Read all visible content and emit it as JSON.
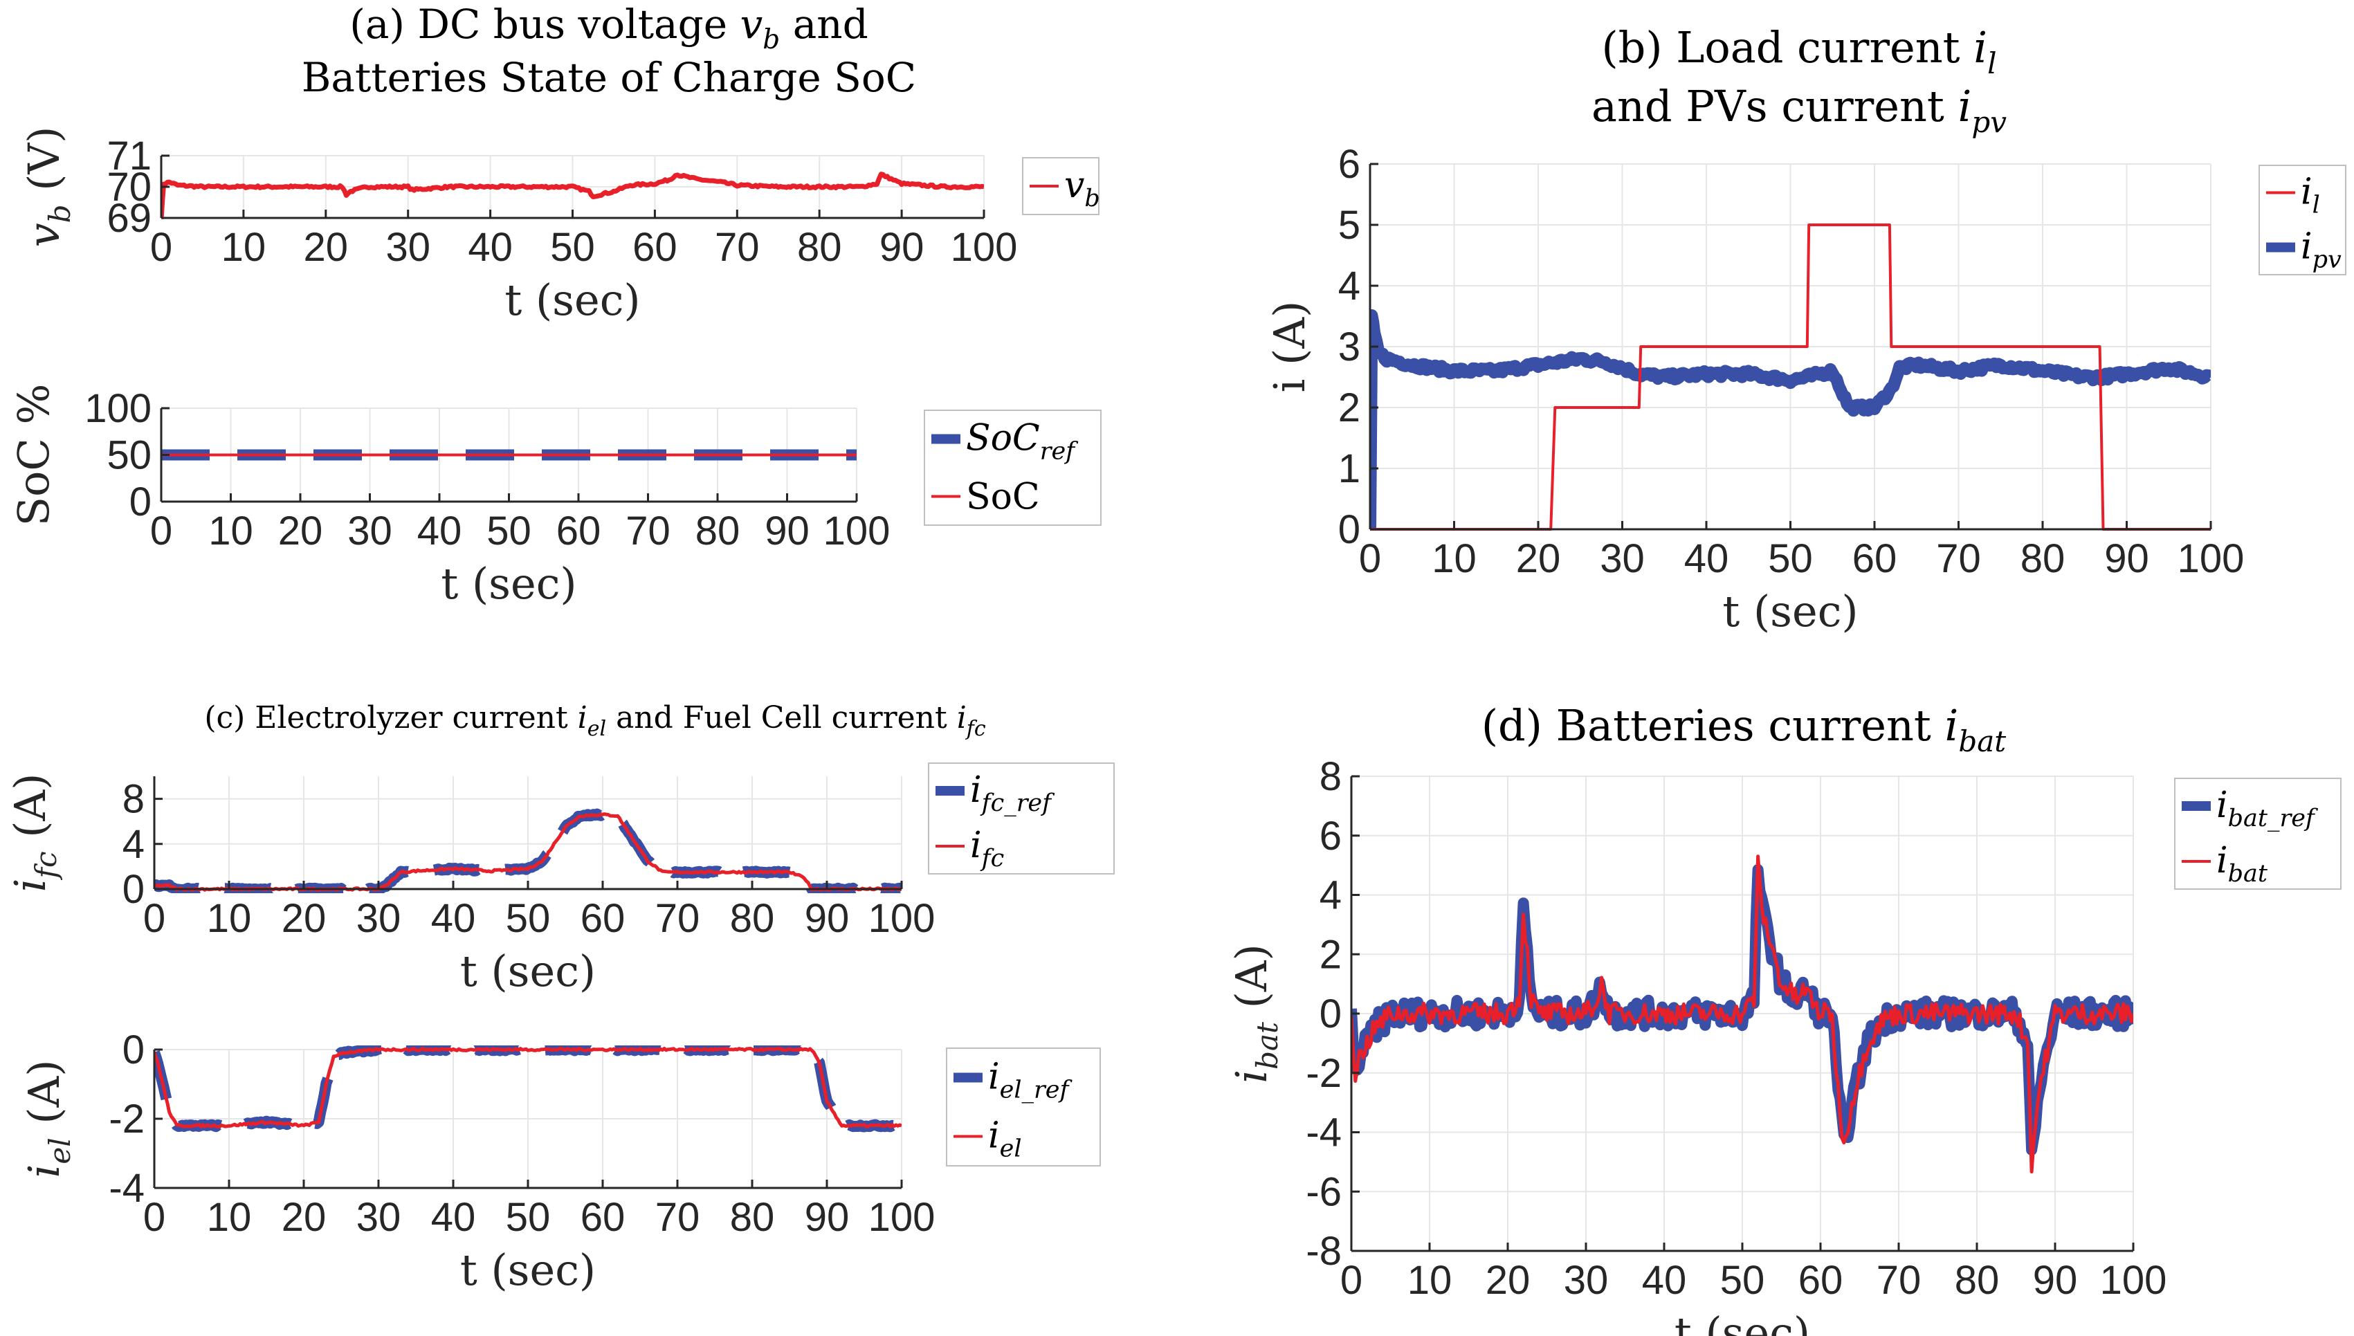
{
  "colors": {
    "red": "#e8202a",
    "blue": "#3a4fa6",
    "grid": "#e6e6e6",
    "axis": "#262626"
  },
  "chart_data": [
    {
      "id": "a1",
      "type": "line",
      "title_lines": [
        "(a) DC bus voltage v_b and",
        "Batteries State of Charge SoC"
      ],
      "xlabel": "t (sec)",
      "ylabel": "v_b (V)",
      "xlim": [
        0,
        100
      ],
      "ylim": [
        69,
        71
      ],
      "xticks": [
        0,
        10,
        20,
        30,
        40,
        50,
        60,
        70,
        80,
        90,
        100
      ],
      "yticks": [
        69,
        70,
        71
      ],
      "legend": [
        {
          "label": "v_b",
          "color": "red",
          "dash": false
        }
      ],
      "series": [
        {
          "name": "v_b",
          "color": "red",
          "width": 7,
          "noise": 0.035,
          "x": [
            0,
            0.3,
            1,
            2,
            5,
            10,
            15,
            20,
            22,
            22.5,
            23,
            25,
            28,
            30,
            30.5,
            35,
            40,
            45,
            50,
            52,
            52.5,
            55,
            57,
            60,
            62,
            62.5,
            65,
            68,
            70,
            75,
            80,
            85,
            87,
            87.5,
            90,
            95,
            100
          ],
          "y": [
            69,
            70.1,
            70.15,
            70.05,
            70,
            70,
            70,
            70,
            70,
            69.75,
            69.85,
            70,
            70,
            70,
            69.9,
            70,
            70,
            70,
            70,
            69.85,
            69.7,
            69.85,
            70.05,
            70.1,
            70.25,
            70.4,
            70.25,
            70.15,
            70.05,
            70,
            70,
            70,
            70.1,
            70.4,
            70.1,
            70,
            70
          ]
        }
      ]
    },
    {
      "id": "a2",
      "type": "line",
      "xlabel": "t (sec)",
      "ylabel": "SoC %",
      "xlim": [
        0,
        100
      ],
      "ylim": [
        0,
        100
      ],
      "xticks": [
        0,
        10,
        20,
        30,
        40,
        50,
        60,
        70,
        80,
        90,
        100
      ],
      "yticks": [
        0,
        50,
        100
      ],
      "legend": [
        {
          "label": "SoC_ref",
          "color": "blue",
          "dash": true
        },
        {
          "label": "SoC",
          "color": "red",
          "dash": false
        }
      ],
      "series": [
        {
          "name": "SoC_ref",
          "color": "blue",
          "width": 16,
          "dash": true,
          "x": [
            0,
            100
          ],
          "y": [
            50,
            50
          ]
        },
        {
          "name": "SoC",
          "color": "red",
          "width": 4,
          "x": [
            0,
            100
          ],
          "y": [
            50,
            50
          ]
        }
      ]
    },
    {
      "id": "b",
      "type": "line",
      "title_lines": [
        "(b) Load current i_l",
        "and PVs current i_pv"
      ],
      "xlabel": "t (sec)",
      "ylabel": "i (A)",
      "xlim": [
        0,
        100
      ],
      "ylim": [
        0,
        6
      ],
      "xticks": [
        0,
        10,
        20,
        30,
        40,
        50,
        60,
        70,
        80,
        90,
        100
      ],
      "yticks": [
        0,
        1,
        2,
        3,
        4,
        5,
        6
      ],
      "legend": [
        {
          "label": "i_l",
          "color": "red",
          "dash": false
        },
        {
          "label": "i_pv",
          "color": "blue",
          "dash": true
        }
      ],
      "series": [
        {
          "name": "i_pv",
          "color": "blue",
          "width": 18,
          "dash": false,
          "noise": 0.05,
          "x": [
            0,
            0.2,
            0.5,
            1,
            2,
            5,
            10,
            15,
            20,
            25,
            28,
            30,
            32,
            35,
            40,
            45,
            50,
            52,
            55,
            57,
            60,
            62,
            63,
            65,
            70,
            75,
            80,
            85,
            87,
            90,
            95,
            100
          ],
          "y": [
            0,
            3.5,
            3.2,
            2.9,
            2.8,
            2.7,
            2.6,
            2.6,
            2.7,
            2.8,
            2.75,
            2.65,
            2.55,
            2.5,
            2.55,
            2.55,
            2.45,
            2.5,
            2.6,
            2.0,
            2.0,
            2.3,
            2.65,
            2.7,
            2.6,
            2.7,
            2.6,
            2.5,
            2.5,
            2.55,
            2.65,
            2.5
          ]
        },
        {
          "name": "i_l",
          "color": "red",
          "width": 4,
          "x": [
            0,
            21.5,
            22,
            32,
            32.2,
            52,
            52.2,
            61.8,
            62,
            86.8,
            87.2,
            100
          ],
          "y": [
            0,
            0,
            2,
            2,
            3,
            3,
            5,
            5,
            3,
            3,
            0,
            0
          ]
        }
      ]
    },
    {
      "id": "c1",
      "type": "line",
      "title_lines": [
        "(c) Electrolyzer current i_el and Fuel Cell current i_fc"
      ],
      "xlabel": "t (sec)",
      "ylabel": "i_fc (A)",
      "xlim": [
        0,
        100
      ],
      "ylim": [
        0,
        10
      ],
      "xticks": [
        0,
        10,
        20,
        30,
        40,
        50,
        60,
        70,
        80,
        90,
        100
      ],
      "yticks": [
        0,
        4,
        8
      ],
      "legend": [
        {
          "label": "i_fc_ref",
          "color": "blue",
          "dash": true
        },
        {
          "label": "i_fc",
          "color": "red",
          "dash": false
        }
      ],
      "series": [
        {
          "name": "i_fc_ref",
          "color": "blue",
          "width": 16,
          "dash": true,
          "noise": 0.08,
          "x": [
            0,
            2,
            3,
            30,
            31,
            33,
            35,
            40,
            45,
            50,
            52,
            55,
            57,
            60,
            62,
            64,
            66,
            68,
            70,
            80,
            85,
            87,
            88,
            90,
            100
          ],
          "y": [
            0.3,
            0.3,
            0,
            0,
            0.3,
            1.5,
            1.6,
            1.8,
            1.6,
            1.8,
            2.5,
            5.5,
            6.5,
            6.6,
            6.5,
            4.5,
            2.5,
            1.5,
            1.5,
            1.5,
            1.5,
            1,
            0,
            0,
            0
          ]
        },
        {
          "name": "i_fc",
          "color": "red",
          "width": 5,
          "noise": 0.08,
          "x": [
            0,
            2,
            3,
            30,
            31,
            33,
            35,
            40,
            45,
            50,
            52,
            55,
            57,
            60,
            62,
            64,
            66,
            68,
            70,
            80,
            85,
            87,
            88,
            90,
            100
          ],
          "y": [
            0.3,
            0.3,
            0,
            0,
            0.3,
            1.5,
            1.6,
            1.8,
            1.6,
            1.8,
            2.5,
            5.5,
            6.5,
            6.6,
            6.5,
            4.5,
            2.5,
            1.5,
            1.5,
            1.5,
            1.5,
            1,
            0,
            0,
            0
          ]
        }
      ]
    },
    {
      "id": "c2",
      "type": "line",
      "xlabel": "t (sec)",
      "ylabel": "i_el (A)",
      "xlim": [
        0,
        100
      ],
      "ylim": [
        -4,
        0
      ],
      "xticks": [
        0,
        10,
        20,
        30,
        40,
        50,
        60,
        70,
        80,
        90,
        100
      ],
      "yticks": [
        -4,
        -2,
        0
      ],
      "legend": [
        {
          "label": "i_el_ref",
          "color": "blue",
          "dash": true
        },
        {
          "label": "i_el",
          "color": "red",
          "dash": false
        }
      ],
      "series": [
        {
          "name": "i_el_ref",
          "color": "blue",
          "width": 16,
          "dash": true,
          "noise": 0.03,
          "x": [
            0,
            0.5,
            2,
            3,
            10,
            15,
            20,
            22,
            23,
            24,
            25,
            30,
            88,
            89,
            90,
            92,
            95,
            100
          ],
          "y": [
            -0.1,
            -0.4,
            -1.8,
            -2.2,
            -2.2,
            -2.1,
            -2.2,
            -2.1,
            -1.0,
            -0.2,
            -0.1,
            0,
            0,
            -0.4,
            -1.5,
            -2.2,
            -2.2,
            -2.2
          ]
        },
        {
          "name": "i_el",
          "color": "red",
          "width": 5,
          "noise": 0.03,
          "x": [
            0,
            0.5,
            2,
            3,
            10,
            15,
            20,
            22,
            23,
            24,
            25,
            30,
            88,
            89,
            90,
            92,
            95,
            100
          ],
          "y": [
            -0.1,
            -0.4,
            -1.8,
            -2.2,
            -2.2,
            -2.1,
            -2.2,
            -2.1,
            -1.0,
            -0.2,
            -0.1,
            0,
            0,
            -0.4,
            -1.5,
            -2.2,
            -2.2,
            -2.2
          ]
        }
      ]
    },
    {
      "id": "d",
      "type": "line",
      "title_lines": [
        "(d) Batteries current i_bat"
      ],
      "xlabel": "t (sec)",
      "ylabel": "i_bat (A)",
      "xlim": [
        0,
        100
      ],
      "ylim": [
        -8,
        8
      ],
      "xticks": [
        0,
        10,
        20,
        30,
        40,
        50,
        60,
        70,
        80,
        90,
        100
      ],
      "yticks": [
        -8,
        -6,
        -4,
        -2,
        0,
        2,
        4,
        6,
        8
      ],
      "legend": [
        {
          "label": "i_bat_ref",
          "color": "blue",
          "dash": true
        },
        {
          "label": "i_bat",
          "color": "red",
          "dash": false
        }
      ],
      "series": [
        {
          "name": "i_bat_ref",
          "color": "blue",
          "width": 16,
          "dash": false,
          "noise": 0.45,
          "x": [
            0,
            0.5,
            1,
            2,
            3,
            5,
            10,
            20,
            21.5,
            22,
            22.5,
            23,
            24,
            25,
            30,
            31.5,
            32,
            33,
            35,
            40,
            45,
            50,
            51.5,
            52,
            52.5,
            53,
            54,
            55,
            57,
            58,
            60,
            61.5,
            62,
            63,
            64,
            66,
            68,
            70,
            75,
            80,
            85,
            86.5,
            87,
            88,
            90,
            100
          ],
          "y": [
            0,
            -2,
            -1.5,
            -1,
            -0.5,
            0,
            0,
            0,
            0.5,
            3.5,
            2,
            0.5,
            0,
            0,
            0,
            0.5,
            1,
            0,
            0,
            0,
            0,
            0,
            0.5,
            5,
            3.5,
            3,
            2,
            1,
            0.5,
            0.8,
            0,
            0,
            -2,
            -4.5,
            -3,
            -1,
            -0.2,
            0,
            0,
            0,
            0,
            -1,
            -5,
            -2.5,
            0,
            0
          ]
        },
        {
          "name": "i_bat",
          "color": "red",
          "width": 5,
          "noise": 0.35,
          "x": [
            0,
            0.5,
            1,
            2,
            3,
            5,
            10,
            20,
            21.5,
            22,
            22.5,
            23,
            24,
            25,
            30,
            31.5,
            32,
            33,
            35,
            40,
            45,
            50,
            51.5,
            52,
            52.5,
            53,
            54,
            55,
            57,
            58,
            60,
            61.5,
            62,
            63,
            64,
            66,
            68,
            70,
            75,
            80,
            85,
            86.5,
            87,
            88,
            90,
            100
          ],
          "y": [
            0,
            -2,
            -1.5,
            -1,
            -0.5,
            0,
            0,
            0,
            0.5,
            3.5,
            2,
            0.5,
            0,
            0,
            0,
            0.5,
            1,
            0,
            0,
            0,
            0,
            0,
            0.5,
            5,
            3.5,
            3,
            2,
            1,
            0.5,
            0.8,
            0,
            0,
            -2,
            -4.5,
            -3,
            -1,
            -0.2,
            0,
            0,
            0,
            0,
            -1,
            -5,
            -2.5,
            0,
            0
          ]
        }
      ]
    }
  ]
}
